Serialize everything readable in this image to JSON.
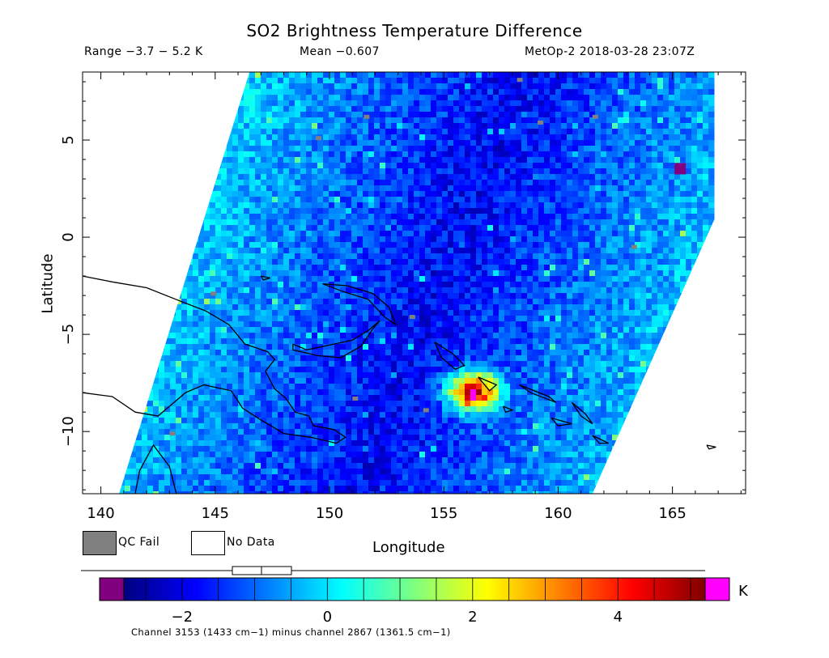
{
  "header": {
    "title": "SO2 Brightness Temperature Difference",
    "range": "Range −3.7 − 5.2 K",
    "mean": "Mean −0.607",
    "meta": "MetOp-2 2018-03-28 23:07Z"
  },
  "legend": {
    "qc_fail_label": "QC Fail",
    "no_data_label": "No Data",
    "qc_fail_color": "#808080",
    "no_data_color": "#ffffff"
  },
  "colorbar": {
    "unit": "K",
    "min": -2.8,
    "max": 5.2,
    "ticks": [
      -2,
      0,
      2,
      4
    ],
    "tick_labels": [
      "−2",
      "0",
      "2",
      "4"
    ],
    "under_color": "#800080",
    "over_color": "#ff00ff",
    "colors": [
      "#00007f",
      "#0000ff",
      "#0080ff",
      "#00ffff",
      "#7fff7f",
      "#ffff00",
      "#ff8000",
      "#ff0000",
      "#7f0000"
    ],
    "footnote": "Channel 3153 (1433 cm−1) minus channel 2867 (1361.5 cm−1)"
  },
  "chart_data": {
    "type": "heatmap",
    "xlabel": "Longitude",
    "ylabel": "Latitude",
    "xlim": [
      139.2,
      168.2
    ],
    "ylim": [
      -13.2,
      8.5
    ],
    "xticks": [
      140,
      145,
      150,
      155,
      160,
      165
    ],
    "yticks": [
      5,
      0,
      -5,
      -10
    ],
    "ytick_labels": [
      "5",
      "0",
      "−5",
      "−10"
    ],
    "swath_corners": [
      [
        146.5,
        8.5
      ],
      [
        169.7,
        8.5
      ],
      [
        161.5,
        -13.2
      ],
      [
        140.8,
        -13.2
      ]
    ],
    "background_value": -1.5,
    "so2_plume": {
      "lon": 156.2,
      "lat": -7.8,
      "peak_value": 4.6
    },
    "qc_fail_cells": [
      [
        149.4,
        5.2
      ],
      [
        151.5,
        6.3
      ],
      [
        158.2,
        8.2
      ],
      [
        163.2,
        -0.4
      ],
      [
        151.0,
        -8.2
      ],
      [
        153.5,
        -4.0
      ],
      [
        154.1,
        -8.8
      ],
      [
        143.0,
        -10.0
      ],
      [
        144.8,
        -2.8
      ],
      [
        159.1,
        6.0
      ],
      [
        161.5,
        6.3
      ]
    ],
    "coastlines": [
      [
        [
          139.2,
          -2.0
        ],
        [
          140.5,
          -2.3
        ],
        [
          142.0,
          -2.6
        ],
        [
          143.5,
          -3.3
        ],
        [
          144.6,
          -3.8
        ],
        [
          145.6,
          -4.5
        ],
        [
          146.3,
          -5.5
        ],
        [
          147.3,
          -5.9
        ],
        [
          147.6,
          -6.3
        ],
        [
          147.2,
          -6.9
        ],
        [
          147.6,
          -7.8
        ],
        [
          148.1,
          -8.3
        ],
        [
          148.5,
          -9.0
        ],
        [
          149.1,
          -9.2
        ],
        [
          149.3,
          -9.7
        ],
        [
          150.2,
          -9.9
        ],
        [
          150.7,
          -10.3
        ],
        [
          150.3,
          -10.6
        ],
        [
          149.2,
          -10.3
        ],
        [
          148.0,
          -10.1
        ],
        [
          147.0,
          -9.4
        ],
        [
          146.2,
          -8.8
        ],
        [
          145.7,
          -7.9
        ],
        [
          144.5,
          -7.6
        ],
        [
          143.7,
          -8.0
        ],
        [
          142.5,
          -9.2
        ],
        [
          141.5,
          -9.0
        ],
        [
          140.5,
          -8.2
        ],
        [
          139.2,
          -8.0
        ]
      ],
      [
        [
          141.5,
          -13.2
        ],
        [
          141.7,
          -12.0
        ],
        [
          142.3,
          -10.7
        ],
        [
          143.0,
          -11.8
        ],
        [
          143.3,
          -13.2
        ]
      ],
      [
        [
          148.4,
          -5.5
        ],
        [
          149.0,
          -5.8
        ],
        [
          150.2,
          -5.5
        ],
        [
          151.0,
          -5.3
        ],
        [
          151.7,
          -4.8
        ],
        [
          152.2,
          -4.3
        ],
        [
          151.9,
          -4.7
        ],
        [
          151.4,
          -5.6
        ],
        [
          150.5,
          -6.2
        ],
        [
          149.5,
          -6.1
        ],
        [
          148.4,
          -5.8
        ],
        [
          148.4,
          -5.5
        ]
      ],
      [
        [
          149.7,
          -2.4
        ],
        [
          150.6,
          -2.8
        ],
        [
          151.7,
          -3.2
        ],
        [
          152.4,
          -4.1
        ],
        [
          152.9,
          -4.5
        ],
        [
          152.6,
          -3.6
        ],
        [
          151.9,
          -2.9
        ],
        [
          150.8,
          -2.5
        ],
        [
          149.7,
          -2.4
        ]
      ],
      [
        [
          154.6,
          -5.4
        ],
        [
          155.4,
          -6.0
        ],
        [
          155.9,
          -6.6
        ],
        [
          155.5,
          -6.8
        ],
        [
          154.9,
          -6.2
        ],
        [
          154.6,
          -5.4
        ]
      ],
      [
        [
          156.5,
          -7.2
        ],
        [
          157.3,
          -7.6
        ],
        [
          157.0,
          -7.9
        ],
        [
          156.5,
          -7.2
        ]
      ],
      [
        [
          158.3,
          -7.6
        ],
        [
          159.6,
          -8.2
        ],
        [
          159.9,
          -8.5
        ],
        [
          158.8,
          -8.0
        ],
        [
          158.3,
          -7.6
        ]
      ],
      [
        [
          160.6,
          -8.5
        ],
        [
          161.2,
          -9.1
        ],
        [
          161.5,
          -9.6
        ],
        [
          161.0,
          -9.2
        ],
        [
          160.6,
          -8.5
        ]
      ],
      [
        [
          159.7,
          -9.3
        ],
        [
          160.6,
          -9.6
        ],
        [
          160.0,
          -9.7
        ],
        [
          159.7,
          -9.3
        ]
      ],
      [
        [
          161.5,
          -10.2
        ],
        [
          162.2,
          -10.6
        ],
        [
          161.8,
          -10.6
        ],
        [
          161.5,
          -10.2
        ]
      ],
      [
        [
          157.6,
          -8.7
        ],
        [
          158.0,
          -8.9
        ],
        [
          157.7,
          -9.0
        ],
        [
          157.6,
          -8.7
        ]
      ],
      [
        [
          147.0,
          -2.0
        ],
        [
          147.4,
          -2.1
        ],
        [
          147.1,
          -2.2
        ],
        [
          147.0,
          -2.0
        ]
      ],
      [
        [
          166.5,
          -10.7
        ],
        [
          166.9,
          -10.8
        ],
        [
          166.6,
          -10.9
        ],
        [
          166.5,
          -10.7
        ]
      ]
    ]
  }
}
